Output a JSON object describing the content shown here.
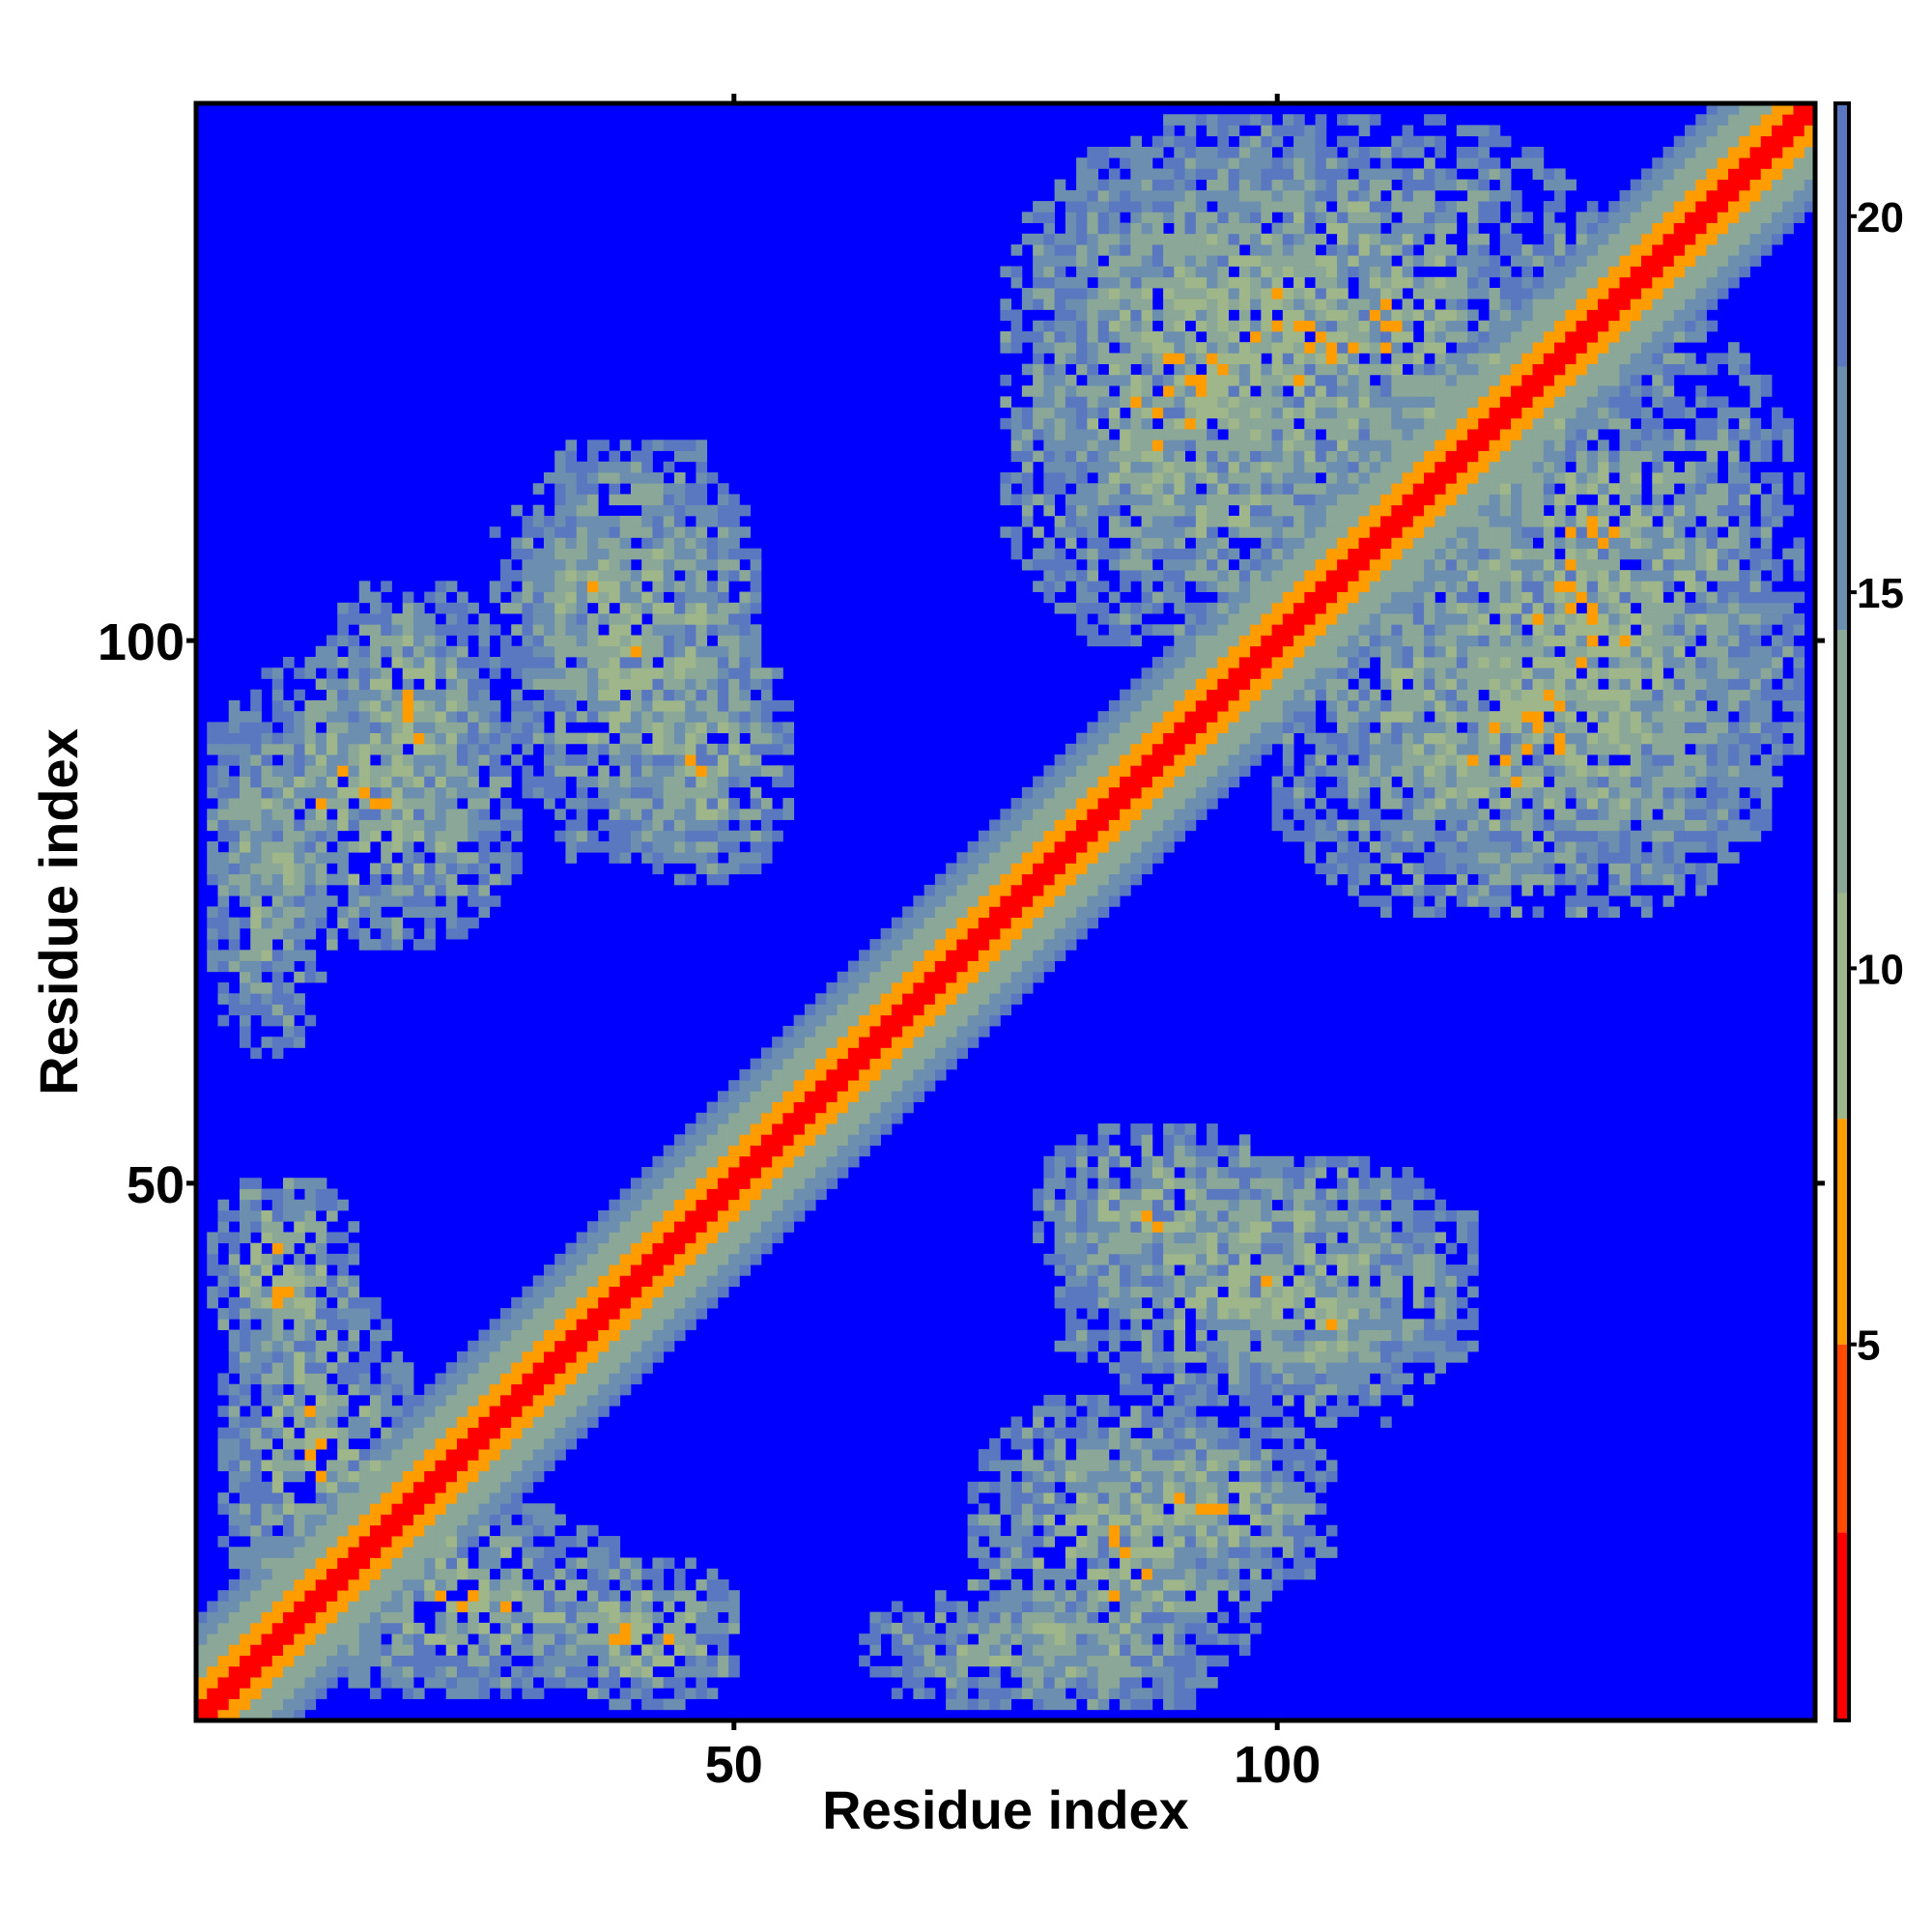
{
  "chart_data": {
    "type": "heatmap",
    "title": "",
    "xlabel": "Residue index",
    "ylabel": "Residue index",
    "x_range": [
      1,
      149
    ],
    "y_range": [
      1,
      149
    ],
    "x_ticks": [
      50,
      100
    ],
    "y_ticks": [
      50,
      100
    ],
    "colorbar": {
      "range": [
        0,
        21.5
      ],
      "ticks": [
        5,
        10,
        15,
        20
      ],
      "colors": [
        {
          "upto": 2.5,
          "color": "#ff0000"
        },
        {
          "upto": 5,
          "color": "#ff4a00"
        },
        {
          "upto": 8,
          "color": "#ff9c00"
        },
        {
          "upto": 11,
          "color": "#9fb68a"
        },
        {
          "upto": 14.5,
          "color": "#8aa798"
        },
        {
          "upto": 18,
          "color": "#6c8fb0"
        },
        {
          "upto": 21.5,
          "color": "#5a78bf"
        },
        {
          "upto": 999,
          "color": "#0000ff"
        }
      ]
    },
    "matrix_description": "pairwise residue distance map; values > 21.5 shown as saturated blue",
    "diagonal": {
      "halfwidth_residues": 1,
      "value": 1
    },
    "contact_blocks": [
      {
        "x": [
          2,
          12
        ],
        "y": [
          62,
          92
        ],
        "center_value": 12
      },
      {
        "x": [
          12,
          28
        ],
        "y": [
          82,
          105
        ],
        "center_value": 11
      },
      {
        "x": [
          28,
          50
        ],
        "y": [
          95,
          115
        ],
        "center_value": 12
      },
      {
        "x": [
          40,
          55
        ],
        "y": [
          78,
          100
        ],
        "center_value": 11
      },
      {
        "x": [
          2,
          15
        ],
        "y": [
          33,
          50
        ],
        "center_value": 10
      },
      {
        "x": [
          10,
          40
        ],
        "y": [
          3,
          20
        ],
        "center_value": 11
      },
      {
        "x": [
          72,
          98
        ],
        "y": [
          2,
          30
        ],
        "center_value": 11
      },
      {
        "x": [
          80,
          118
        ],
        "y": [
          30,
          52
        ],
        "center_value": 11
      },
      {
        "x": [
          78,
          130
        ],
        "y": [
          110,
          148
        ],
        "center_value": 11
      },
      {
        "x": [
          100,
          145
        ],
        "y": [
          75,
          110
        ],
        "center_value": 11
      }
    ]
  }
}
